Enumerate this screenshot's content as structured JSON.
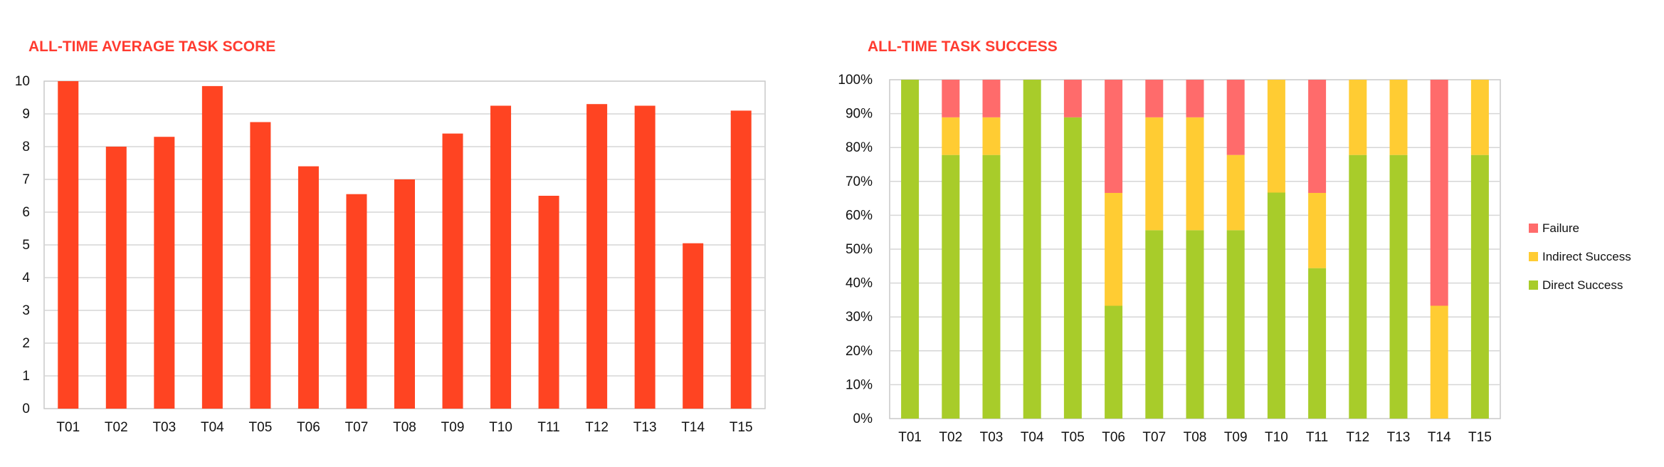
{
  "charts": [
    {
      "type": "bar",
      "title": "ALL-TIME AVERAGE TASK SCORE",
      "categories": [
        "T01",
        "T02",
        "T03",
        "T04",
        "T05",
        "T06",
        "T07",
        "T08",
        "T09",
        "T10",
        "T11",
        "T12",
        "T13",
        "T14",
        "T15"
      ],
      "values": [
        10,
        8,
        8.3,
        9.85,
        8.75,
        7.4,
        6.55,
        7,
        8.4,
        9.25,
        6.5,
        9.3,
        9.25,
        5.05,
        9.1
      ],
      "ylim": [
        0,
        10
      ],
      "yticks": [
        "0",
        "1",
        "2",
        "3",
        "4",
        "5",
        "6",
        "7",
        "8",
        "9",
        "10"
      ],
      "color": "#ff4422"
    },
    {
      "type": "stacked-bar",
      "title": "ALL-TIME TASK SUCCESS",
      "categories": [
        "T01",
        "T02",
        "T03",
        "T04",
        "T05",
        "T06",
        "T07",
        "T08",
        "T09",
        "T10",
        "T11",
        "T12",
        "T13",
        "T14",
        "T15"
      ],
      "series": [
        {
          "name": "Direct Success",
          "color": "#a8cc2a",
          "values": [
            100,
            77.8,
            77.8,
            100,
            88.9,
            33.3,
            55.6,
            55.6,
            55.6,
            66.7,
            44.4,
            77.8,
            77.8,
            0,
            77.8
          ]
        },
        {
          "name": "Indirect Success",
          "color": "#ffcc33",
          "values": [
            0,
            11.1,
            11.1,
            0,
            0,
            33.3,
            33.3,
            33.3,
            22.2,
            33.3,
            22.2,
            22.2,
            22.2,
            33.3,
            22.2
          ]
        },
        {
          "name": "Failure",
          "color": "#ff6b6b",
          "values": [
            0,
            11.1,
            11.1,
            0,
            11.1,
            33.4,
            11.1,
            11.1,
            22.2,
            0,
            33.4,
            0,
            0,
            66.7,
            0
          ]
        }
      ],
      "legend_order": [
        "Failure",
        "Indirect Success",
        "Direct Success"
      ],
      "ylim": [
        0,
        100
      ],
      "yticks": [
        "0%",
        "10%",
        "20%",
        "30%",
        "40%",
        "50%",
        "60%",
        "70%",
        "80%",
        "90%",
        "100%"
      ]
    }
  ],
  "chart_data": [
    {
      "type": "bar",
      "title": "ALL-TIME AVERAGE TASK SCORE",
      "categories": [
        "T01",
        "T02",
        "T03",
        "T04",
        "T05",
        "T06",
        "T07",
        "T08",
        "T09",
        "T10",
        "T11",
        "T12",
        "T13",
        "T14",
        "T15"
      ],
      "values": [
        10,
        8,
        8.3,
        9.85,
        8.75,
        7.4,
        6.55,
        7,
        8.4,
        9.25,
        6.5,
        9.3,
        9.25,
        5.05,
        9.1
      ],
      "xlabel": "",
      "ylabel": "",
      "ylim": [
        0,
        10
      ],
      "grid": true
    },
    {
      "type": "bar",
      "stacked": true,
      "title": "ALL-TIME TASK SUCCESS",
      "categories": [
        "T01",
        "T02",
        "T03",
        "T04",
        "T05",
        "T06",
        "T07",
        "T08",
        "T09",
        "T10",
        "T11",
        "T12",
        "T13",
        "T14",
        "T15"
      ],
      "series": [
        {
          "name": "Direct Success",
          "values": [
            100,
            77.8,
            77.8,
            100,
            88.9,
            33.3,
            55.6,
            55.6,
            55.6,
            66.7,
            44.4,
            77.8,
            77.8,
            0,
            77.8
          ]
        },
        {
          "name": "Indirect Success",
          "values": [
            0,
            11.1,
            11.1,
            0,
            0,
            33.3,
            33.3,
            33.3,
            22.2,
            33.3,
            22.2,
            22.2,
            22.2,
            33.3,
            22.2
          ]
        },
        {
          "name": "Failure",
          "values": [
            0,
            11.1,
            11.1,
            0,
            11.1,
            33.4,
            11.1,
            11.1,
            22.2,
            0,
            33.4,
            0,
            0,
            66.7,
            0
          ]
        }
      ],
      "xlabel": "",
      "ylabel": "",
      "ylim": [
        0,
        100
      ],
      "grid": true,
      "legend": "right"
    }
  ]
}
